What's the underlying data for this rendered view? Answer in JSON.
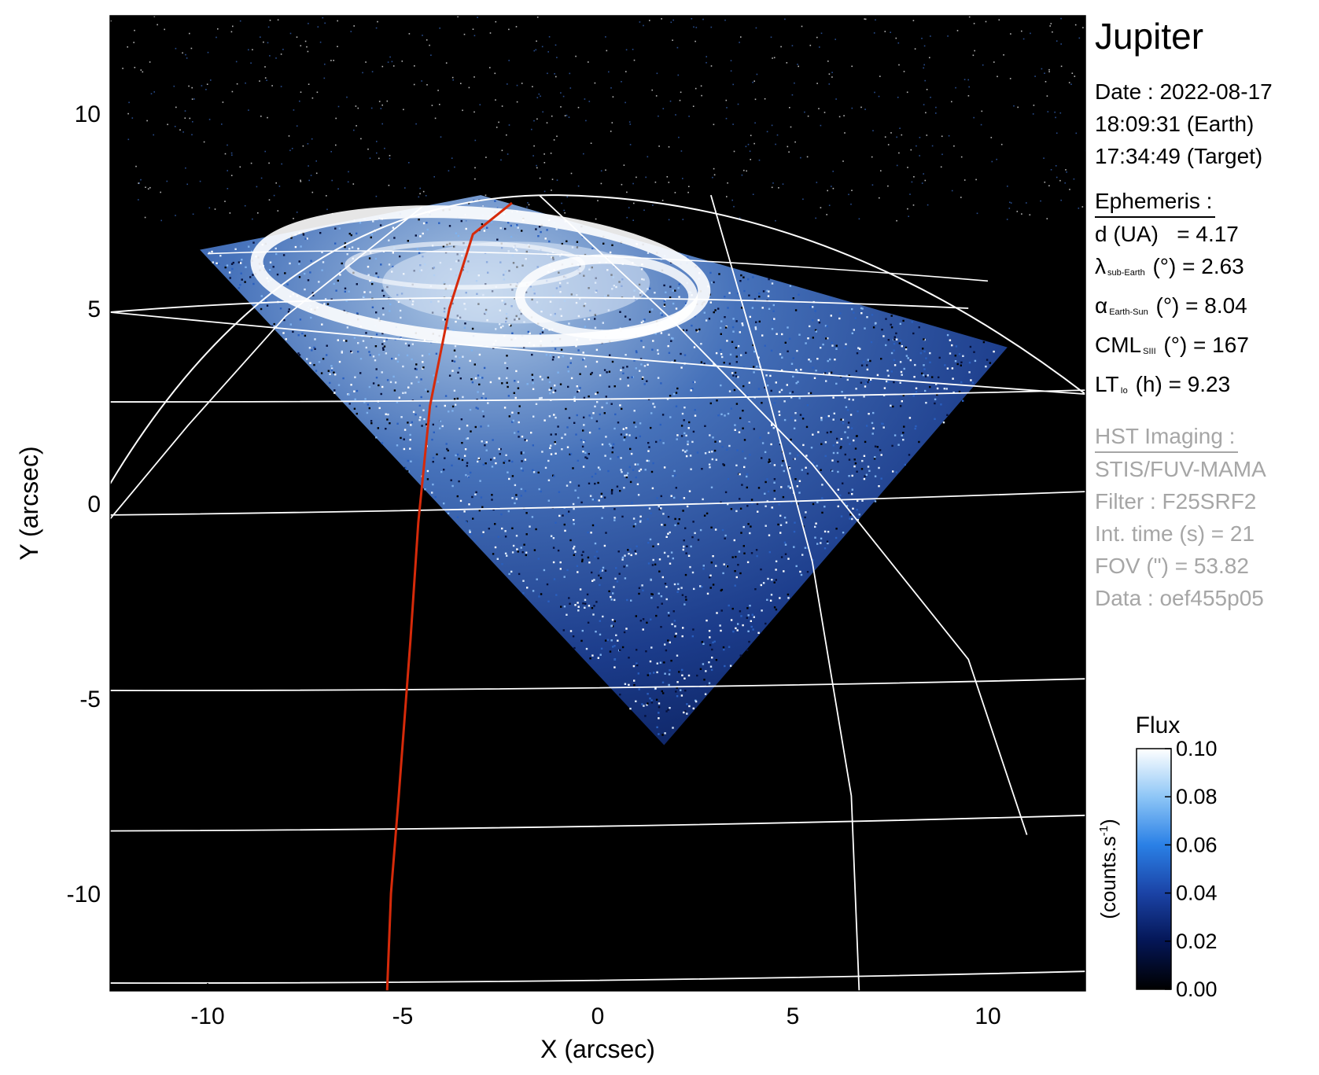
{
  "chart_data": {
    "type": "heatmap",
    "title": "",
    "xlabel": "X (arcsec)",
    "ylabel": "Y (arcsec)",
    "xlim": [
      -12.5,
      12.5
    ],
    "ylim": [
      -12.5,
      12.5
    ],
    "xticks": [
      -10,
      -5,
      0,
      5,
      10
    ],
    "yticks": [
      -10,
      -5,
      0,
      5,
      10
    ],
    "xtick_labels": [
      "-10",
      "-5",
      "0",
      "5",
      "10"
    ],
    "ytick_labels": [
      "-10",
      "-5",
      "0",
      "5",
      "10"
    ],
    "data_region": {
      "shape": "diamond",
      "vertices": [
        [
          -10.2,
          6.5
        ],
        [
          -3.0,
          7.9
        ],
        [
          10.5,
          4.0
        ],
        [
          1.7,
          -6.2
        ]
      ]
    },
    "auroral_oval_center": [
      -3.0,
      5.9
    ],
    "latitude_lines_y_at_edges": [
      {
        "left": -12.3,
        "right": -12.0
      },
      {
        "left": -8.4,
        "right": -8.0
      },
      {
        "left": -4.8,
        "right": -4.5
      },
      {
        "left": -0.3,
        "right": 0.3
      },
      {
        "left": 2.6,
        "right": 2.9
      },
      {
        "left": 4.9,
        "right": 2.8
      }
    ],
    "footprint_track": {
      "name": "",
      "color": "#d62a0a",
      "x": [
        -5.4,
        -5.3,
        -5.1,
        -4.8,
        -4.6,
        -4.3,
        -3.8,
        -3.2,
        -2.2
      ],
      "y": [
        -12.5,
        -10.0,
        -7.5,
        -3.5,
        -0.5,
        2.5,
        5.0,
        6.9,
        7.7
      ]
    },
    "colorbar": {
      "title": "Flux",
      "unit": "(counts.s-1)",
      "min": 0.0,
      "max": 0.1,
      "tick_values": [
        0.0,
        0.02,
        0.04,
        0.06,
        0.08,
        0.1
      ],
      "tick_labels": [
        "0.00",
        "0.02",
        "0.04",
        "0.06",
        "0.08",
        "0.10"
      ],
      "colors": [
        "#000000",
        "#041656",
        "#1b43a6",
        "#2a80e6",
        "#8ec6f6",
        "#ffffff"
      ]
    },
    "background_color": "#000000",
    "grid_color": "#ffffff",
    "grid": true
  },
  "info": {
    "planet": "Jupiter",
    "date_line": "Date : 2022-08-17",
    "earth_time": "18:09:31 (Earth)",
    "target_time": "17:34:49 (Target)",
    "ephemeris_head": "Ephemeris :",
    "d_label": "d (UA)",
    "d_value": "= 4.17",
    "lambda_symbol": "λ",
    "lambda_sub": "sub-Earth",
    "lambda_rest": "(°) = 2.63",
    "alpha_symbol": "α",
    "alpha_sub": "Earth-Sun",
    "alpha_rest": "(°) = 8.04",
    "cml_symbol": "CML",
    "cml_sub": "SIII",
    "cml_rest": "(°) = 167",
    "lt_symbol": "LT",
    "lt_sub": "Io",
    "lt_rest": "(h) = 9.23",
    "hst_head": "HST Imaging :",
    "hst_instrument": "STIS/FUV-MAMA",
    "hst_filter": "Filter : F25SRF2",
    "hst_int_time": "Int. time (s) = 21",
    "hst_fov": "FOV (\") = 53.82",
    "hst_data": "Data : oef455p05"
  }
}
